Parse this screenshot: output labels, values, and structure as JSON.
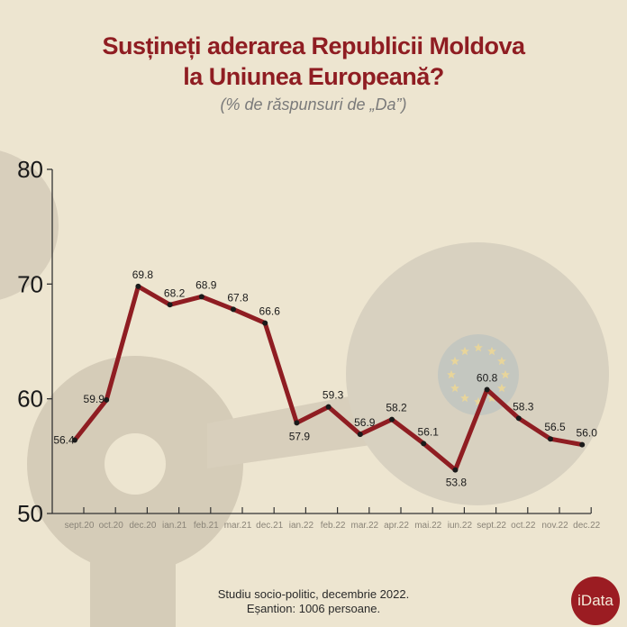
{
  "header": {
    "title_line1": "Susțineți aderarea Republicii Moldova",
    "title_line2": "la Uniunea Europeană?",
    "subtitle": "(% de răspunsuri de „Da”)"
  },
  "chart_data": {
    "type": "line",
    "title": "Susțineți aderarea Republicii Moldova la Uniunea Europeană?",
    "subtitle": "(% de răspunsuri de „Da”)",
    "categories": [
      "sept.20",
      "oct.20",
      "dec.20",
      "ian.21",
      "feb.21",
      "mar.21",
      "dec.21",
      "ian.22",
      "feb.22",
      "mar.22",
      "apr.22",
      "mai.22",
      "iun.22",
      "sept.22",
      "oct.22",
      "nov.22",
      "dec.22"
    ],
    "values": [
      56.4,
      59.9,
      69.8,
      68.2,
      68.9,
      67.8,
      66.6,
      57.9,
      59.3,
      56.9,
      58.2,
      56.1,
      53.8,
      60.8,
      58.3,
      56.5,
      56.0
    ],
    "data_labels": [
      "56.4",
      "59.9",
      "69.8",
      "68.2",
      "68.9",
      "67.8",
      "66.6",
      "57.9",
      "59.3",
      "56.9",
      "58.2",
      "56.1",
      "53.8",
      "60.8",
      "58.3",
      "56.5",
      "56.0"
    ],
    "yticks": [
      "50",
      "60",
      "70",
      "80"
    ],
    "ylim": [
      50,
      80
    ],
    "grid": false,
    "line_color": "#8f1d22",
    "marker_color": "#1a1a1a"
  },
  "footer": {
    "line1": "Studiu socio-politic, decembrie 2022.",
    "line2": "Eșantion: 1006 persoane."
  },
  "logo": {
    "text": "iData",
    "color": "#9b1c22"
  }
}
